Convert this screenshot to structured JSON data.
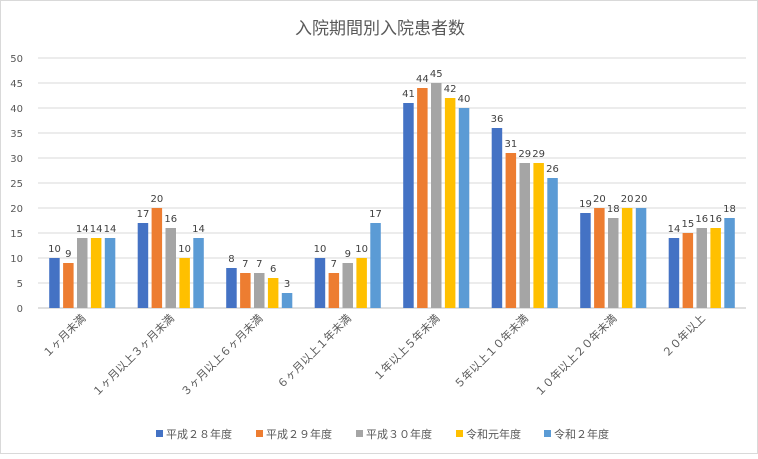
{
  "chart_data": {
    "type": "bar",
    "title": "入院期間別入院患者数",
    "xlabel": "",
    "ylabel": "",
    "ylim": [
      0,
      50
    ],
    "yticks": [
      0,
      5,
      10,
      15,
      20,
      25,
      30,
      35,
      40,
      45,
      50
    ],
    "grid": true,
    "legend_position": "bottom",
    "categories": [
      "１ヶ月未満",
      "１ヶ月以上３ヶ月未満",
      "３ヶ月以上６ヶ月未満",
      "６ヶ月以上１年未満",
      "１年以上５年未満",
      "５年以上１０年未満",
      "１０年以上２０年未満",
      "２０年以上"
    ],
    "series": [
      {
        "name": "平成２８年度",
        "color": "#4472c4",
        "values": [
          10,
          17,
          8,
          10,
          41,
          36,
          19,
          14
        ]
      },
      {
        "name": "平成２９年度",
        "color": "#ed7d31",
        "values": [
          9,
          20,
          7,
          7,
          44,
          31,
          20,
          15
        ]
      },
      {
        "name": "平成３０年度",
        "color": "#a5a5a5",
        "values": [
          14,
          16,
          7,
          9,
          45,
          29,
          18,
          16
        ]
      },
      {
        "name": "令和元年度",
        "color": "#ffc000",
        "values": [
          14,
          10,
          6,
          10,
          42,
          29,
          20,
          16
        ]
      },
      {
        "name": "令和２年度",
        "color": "#5b9bd5",
        "values": [
          14,
          14,
          3,
          17,
          40,
          26,
          20,
          18
        ]
      }
    ]
  }
}
